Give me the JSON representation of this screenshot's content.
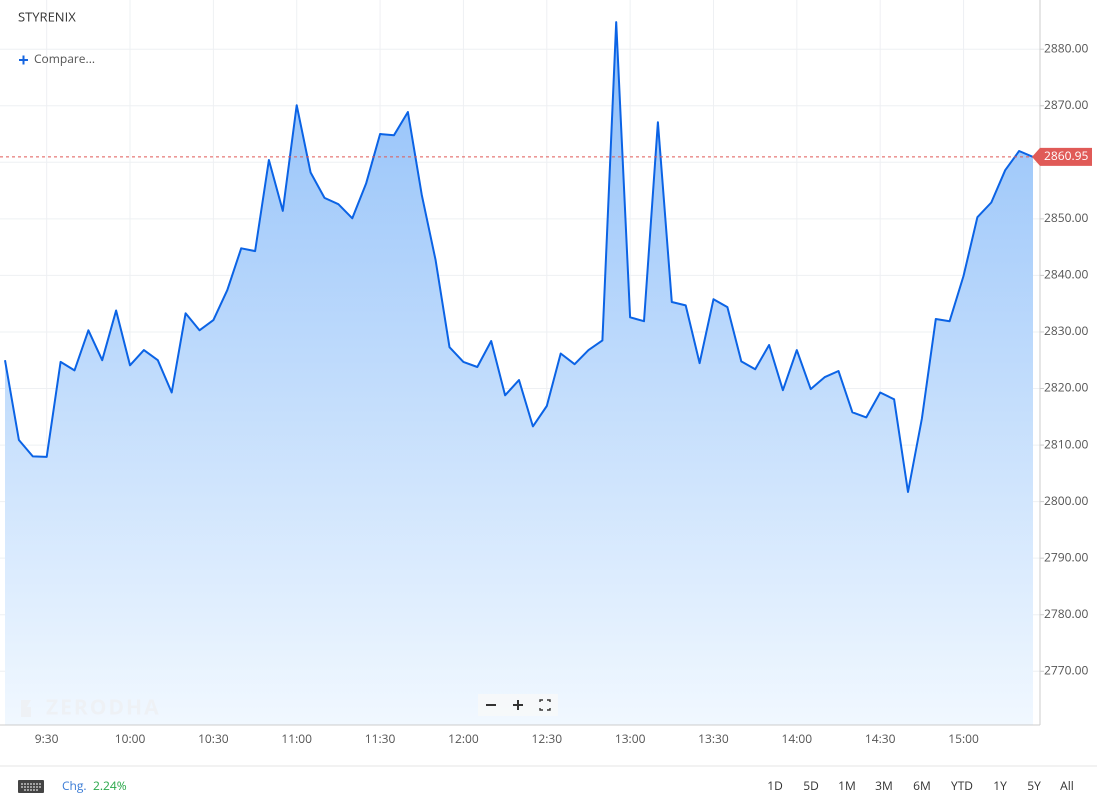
{
  "chart_data": {
    "type": "area",
    "title": "STYRENIX",
    "categories": [
      null,
      null,
      null,
      "9:30",
      null,
      null,
      null,
      null,
      null,
      "10:00",
      null,
      null,
      null,
      null,
      null,
      "10:30",
      null,
      null,
      null,
      null,
      null,
      "11:00",
      null,
      null,
      null,
      null,
      null,
      "11:30",
      null,
      null,
      null,
      null,
      null,
      "12:00",
      null,
      null,
      null,
      null,
      null,
      "12:30",
      null,
      null,
      null,
      null,
      null,
      "13:00",
      null,
      null,
      null,
      null,
      null,
      "13:30",
      null,
      null,
      null,
      null,
      null,
      "14:00",
      null,
      null,
      null,
      null,
      null,
      "14:30",
      null,
      null,
      null,
      null,
      null,
      "15:00",
      null,
      null,
      null,
      null,
      null
    ],
    "series": [
      {
        "name": "STYRENIX",
        "color": "#0b63e5",
        "values": [
          2825.0,
          2810.9,
          2808.0,
          2807.9,
          2824.7,
          2823.2,
          2830.3,
          2825.0,
          2833.8,
          2824.1,
          2826.8,
          2825.0,
          2819.3,
          2833.3,
          2830.3,
          2832.1,
          2837.4,
          2844.8,
          2844.3,
          2860.4,
          2851.4,
          2870.1,
          2858.2,
          2853.7,
          2852.6,
          2850.1,
          2856.3,
          2865.0,
          2864.8,
          2868.9,
          2854.2,
          2842.7,
          2827.3,
          2824.7,
          2823.8,
          2828.4,
          2818.8,
          2821.5,
          2813.3,
          2816.9,
          2826.2,
          2824.3,
          2826.8,
          2828.5,
          2884.8,
          2832.6,
          2831.9,
          2867.1,
          2835.3,
          2834.7,
          2824.5,
          2835.8,
          2834.4,
          2824.8,
          2823.4,
          2827.7,
          2819.7,
          2826.8,
          2819.9,
          2822.0,
          2823.1,
          2815.8,
          2814.9,
          2819.3,
          2818.1,
          2801.7,
          2814.7,
          2832.3,
          2831.9,
          2839.9,
          2850.3,
          2852.9,
          2858.6,
          2862.0,
          2860.95
        ]
      }
    ],
    "last_value": 2860.95,
    "last_color": "#e05a57",
    "ylim": [
      2760.5,
      2888.7
    ],
    "yticks": [
      {
        "value": 2770,
        "label": "2770.00"
      },
      {
        "value": 2780,
        "label": "2780.00"
      },
      {
        "value": 2790,
        "label": "2790.00"
      },
      {
        "value": 2800,
        "label": "2800.00"
      },
      {
        "value": 2810,
        "label": "2810.00"
      },
      {
        "value": 2820,
        "label": "2820.00"
      },
      {
        "value": 2830,
        "label": "2830.00"
      },
      {
        "value": 2840,
        "label": "2840.00"
      },
      {
        "value": 2850,
        "label": "2850.00"
      },
      {
        "value": 2860,
        "label": "2860.00"
      },
      {
        "value": 2870,
        "label": "2870.00"
      },
      {
        "value": 2880,
        "label": "2880.00"
      }
    ],
    "grid": true
  },
  "ui": {
    "compare": "Compare...",
    "watermark": "ZERODHA",
    "change_label": "Chg.",
    "change_value": "2.24%",
    "ranges": [
      "1D",
      "5D",
      "1M",
      "3M",
      "6M",
      "YTD",
      "1Y",
      "5Y",
      "All"
    ]
  }
}
